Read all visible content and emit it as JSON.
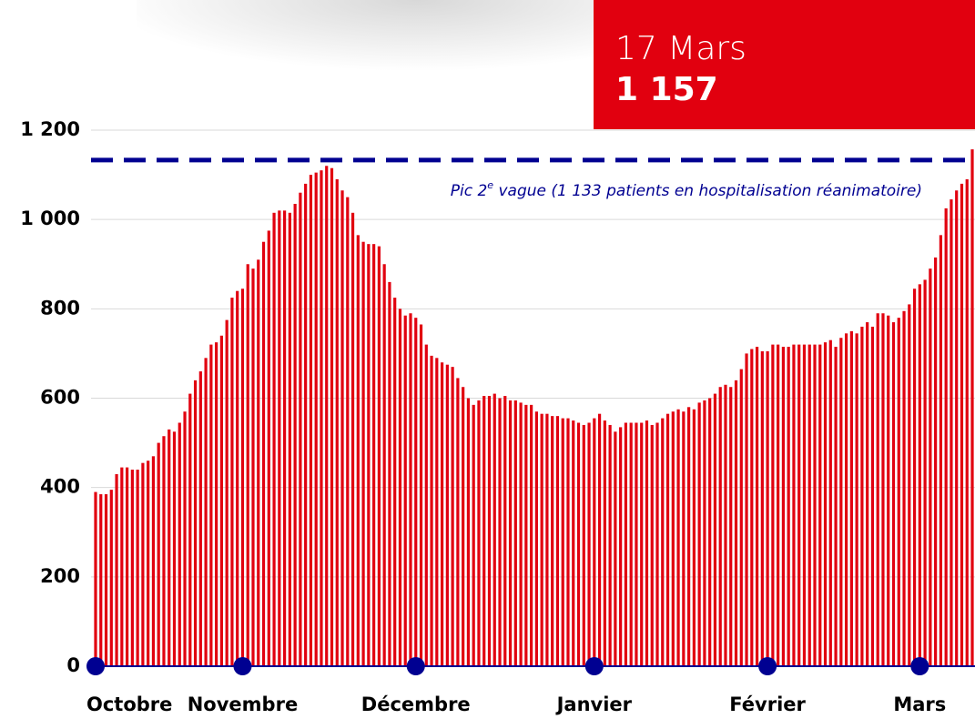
{
  "chart_data": {
    "type": "bar",
    "callout": {
      "date": "17 Mars",
      "value": 1157,
      "value_label": "1 157"
    },
    "reference_line": {
      "value": 1133,
      "label": [
        "Pic 2",
        "e",
        " vague (1 133 patients en hospitalisation réanimatoire)"
      ]
    },
    "categories": [
      "Octobre",
      null,
      null,
      null,
      null,
      null,
      null,
      null,
      null,
      null,
      null,
      null,
      null,
      null,
      null,
      null,
      null,
      null,
      null,
      null,
      null,
      null,
      null,
      null,
      null,
      null,
      null,
      null,
      "Novembre",
      null,
      null,
      null,
      null,
      null,
      null,
      null,
      null,
      null,
      null,
      null,
      null,
      null,
      null,
      null,
      null,
      null,
      null,
      null,
      null,
      null,
      null,
      null,
      null,
      null,
      null,
      null,
      null,
      null,
      null,
      null,
      null,
      "Décembre",
      null,
      null,
      null,
      null,
      null,
      null,
      null,
      null,
      null,
      null,
      null,
      null,
      null,
      null,
      null,
      null,
      null,
      null,
      null,
      null,
      null,
      null,
      null,
      null,
      null,
      null,
      null,
      null,
      null,
      null,
      null,
      null,
      null,
      "Janvier",
      null,
      null,
      null,
      null,
      null,
      null,
      null,
      null,
      null,
      null,
      null,
      null,
      null,
      null,
      null,
      null,
      null,
      null,
      null,
      null,
      null,
      null,
      null,
      null,
      null,
      null,
      null,
      null,
      null,
      null,
      null,
      null,
      "Février",
      null,
      null,
      null,
      null,
      null,
      null,
      null,
      null,
      null,
      null,
      null,
      null,
      null,
      null,
      null,
      null,
      null,
      null,
      null,
      null,
      null,
      null,
      null,
      null,
      null,
      null,
      null,
      null,
      "Mars",
      null,
      null,
      null,
      null,
      null,
      null,
      null,
      null,
      null,
      null
    ],
    "values": [
      390,
      385,
      385,
      395,
      430,
      445,
      445,
      440,
      440,
      455,
      460,
      470,
      500,
      515,
      530,
      525,
      545,
      570,
      610,
      640,
      660,
      690,
      720,
      725,
      740,
      775,
      825,
      840,
      845,
      900,
      890,
      910,
      950,
      975,
      1015,
      1020,
      1020,
      1015,
      1035,
      1060,
      1080,
      1100,
      1105,
      1110,
      1120,
      1115,
      1090,
      1065,
      1050,
      1015,
      965,
      950,
      945,
      945,
      940,
      900,
      860,
      825,
      800,
      785,
      790,
      780,
      765,
      720,
      695,
      690,
      680,
      675,
      670,
      645,
      625,
      600,
      585,
      595,
      605,
      605,
      610,
      600,
      605,
      595,
      595,
      590,
      585,
      585,
      570,
      565,
      565,
      560,
      560,
      555,
      555,
      550,
      545,
      540,
      545,
      555,
      565,
      550,
      540,
      525,
      535,
      545,
      545,
      545,
      545,
      550,
      540,
      545,
      555,
      565,
      570,
      575,
      570,
      580,
      575,
      590,
      595,
      600,
      610,
      625,
      630,
      625,
      640,
      665,
      700,
      710,
      715,
      705,
      705,
      720,
      720,
      715,
      715,
      720,
      720,
      720,
      720,
      720,
      720,
      725,
      730,
      715,
      735,
      745,
      750,
      745,
      760,
      770,
      760,
      790,
      790,
      785,
      770,
      780,
      795,
      810,
      845,
      855,
      865,
      890,
      915,
      965,
      1025,
      1045,
      1065,
      1080,
      1090,
      1157
    ],
    "color": "#e1000f",
    "accent_color": "#000091",
    "ylim": [
      0,
      1200
    ],
    "yticks": [
      0,
      200,
      400,
      600,
      800,
      {
        "value": 1000,
        "label": "1 000"
      },
      {
        "value": 1200,
        "label": "1 200"
      }
    ],
    "grid": true
  }
}
